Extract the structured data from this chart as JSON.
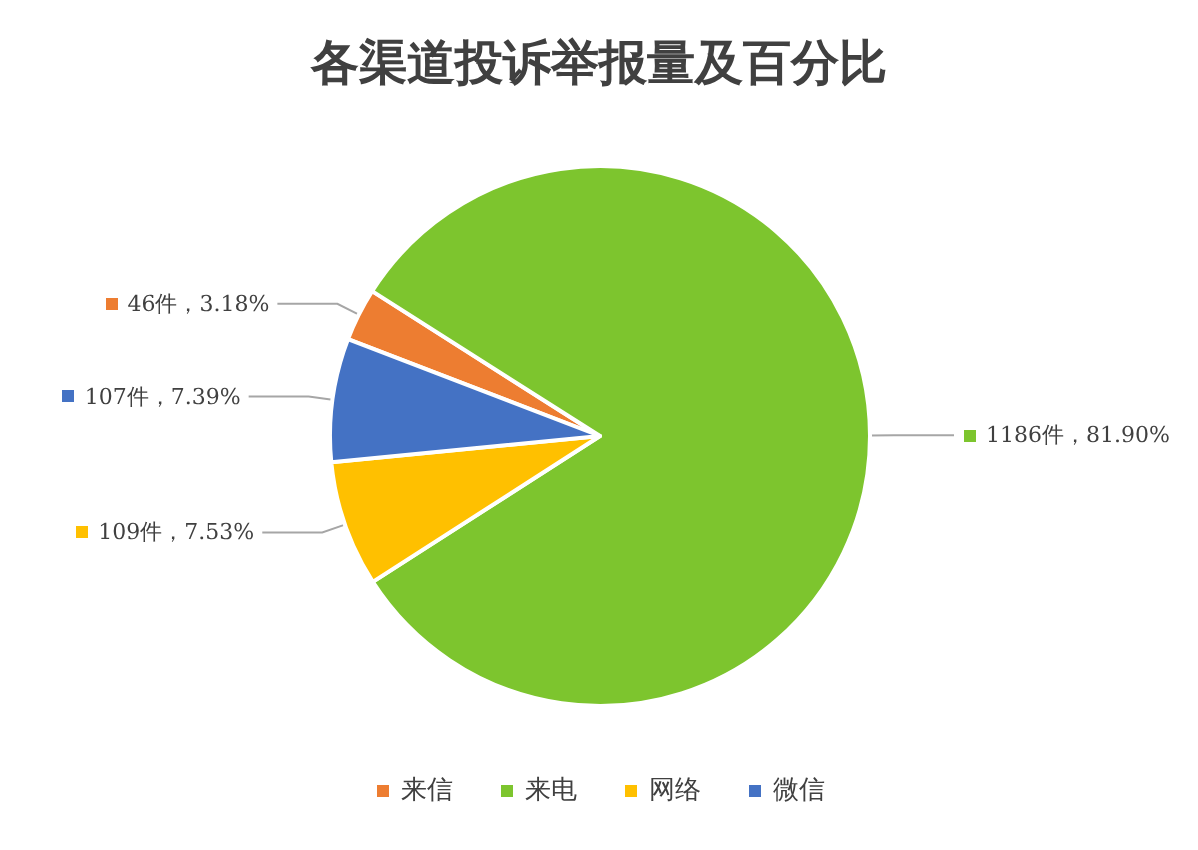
{
  "chart_data": {
    "type": "pie",
    "title": "各渠道投诉举报量及百分比",
    "categories": [
      "来信",
      "来电",
      "网络",
      "微信"
    ],
    "values": [
      46,
      1186,
      109,
      107
    ],
    "colors": [
      "#ed7d31",
      "#7dc52e",
      "#ffc000",
      "#4472c4"
    ],
    "value_labels": [
      "46件，3.18%",
      "1186件，81.90%",
      "109件，7.53%",
      "107件，7.39%"
    ],
    "legend": "bottom"
  }
}
